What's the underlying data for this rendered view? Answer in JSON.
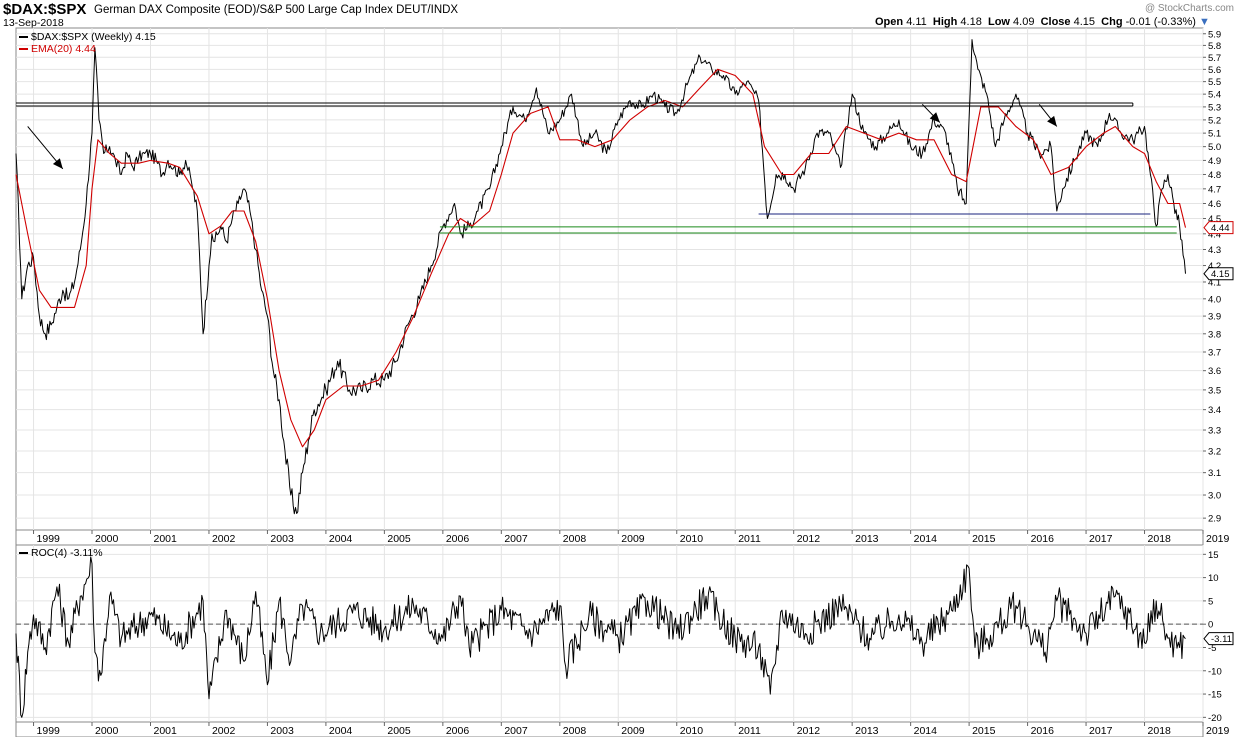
{
  "header": {
    "symbol": "$DAX:$SPX",
    "description": "German DAX Composite (EOD)/S&P 500 Large Cap Index DEUT/INDX",
    "date": "13-Sep-2018",
    "watermark": "@ StockCharts.com",
    "open_label": "Open",
    "open": "4.11",
    "high_label": "High",
    "high": "4.18",
    "low_label": "Low",
    "low": "4.09",
    "close_label": "Close",
    "close": "4.15",
    "chg_label": "Chg",
    "chg": "-0.01 (-0.33%)"
  },
  "colors": {
    "price": "#000000",
    "ema": "#d00000",
    "resistance": "#000000",
    "support_blue": "#1a237e",
    "support_green": "#1b8a1b",
    "zero_line": "#555555"
  },
  "chart_data": [
    {
      "type": "line",
      "name": "price-panel",
      "legend": [
        {
          "label": "$DAX:$SPX (Weekly) 4.15",
          "color": "#000000"
        },
        {
          "label": "EMA(20) 4.44",
          "color": "#d00000"
        }
      ],
      "xlim": [
        1998.7,
        2019.0
      ],
      "ylim": [
        2.85,
        5.95
      ],
      "y_scale": "log",
      "x_ticks": [
        "1999",
        "2000",
        "2001",
        "2002",
        "2003",
        "2004",
        "2005",
        "2006",
        "2007",
        "2008",
        "2009",
        "2010",
        "2011",
        "2012",
        "2013",
        "2014",
        "2015",
        "2016",
        "2017",
        "2018",
        "2019"
      ],
      "y_ticks": [
        "2.9",
        "3.0",
        "3.1",
        "3.2",
        "3.3",
        "3.4",
        "3.5",
        "3.6",
        "3.7",
        "3.8",
        "3.9",
        "4.0",
        "4.1",
        "4.2",
        "4.3",
        "4.4",
        "4.5",
        "4.6",
        "4.7",
        "4.8",
        "4.9",
        "5.0",
        "5.1",
        "5.2",
        "5.3",
        "5.4",
        "5.5",
        "5.6",
        "5.7",
        "5.8",
        "5.9"
      ],
      "series": [
        {
          "name": "$DAX:$SPX",
          "x": [
            1998.7,
            1998.8,
            1998.9,
            1999.0,
            1999.1,
            1999.2,
            1999.3,
            1999.4,
            1999.5,
            1999.6,
            1999.7,
            1999.8,
            1999.9,
            2000.0,
            2000.05,
            2000.12,
            2000.2,
            2000.3,
            2000.4,
            2000.5,
            2000.6,
            2000.7,
            2000.8,
            2000.9,
            2001.0,
            2001.1,
            2001.2,
            2001.3,
            2001.4,
            2001.5,
            2001.6,
            2001.7,
            2001.8,
            2001.9,
            2002.0,
            2002.05,
            2002.1,
            2002.2,
            2002.3,
            2002.4,
            2002.5,
            2002.6,
            2002.7,
            2002.8,
            2002.9,
            2003.0,
            2003.1,
            2003.2,
            2003.3,
            2003.4,
            2003.5,
            2003.6,
            2003.7,
            2003.8,
            2004.0,
            2004.2,
            2004.4,
            2004.6,
            2004.8,
            2005.0,
            2005.2,
            2005.4,
            2005.6,
            2005.8,
            2006.0,
            2006.2,
            2006.3,
            2006.45,
            2006.6,
            2006.8,
            2007.0,
            2007.2,
            2007.4,
            2007.6,
            2007.8,
            2008.0,
            2008.2,
            2008.4,
            2008.6,
            2008.8,
            2009.0,
            2009.2,
            2009.4,
            2009.6,
            2009.8,
            2010.0,
            2010.2,
            2010.4,
            2010.6,
            2010.8,
            2011.0,
            2011.2,
            2011.4,
            2011.55,
            2011.7,
            2011.85,
            2012.0,
            2012.2,
            2012.4,
            2012.6,
            2012.8,
            2013.0,
            2013.2,
            2013.4,
            2013.6,
            2013.8,
            2014.0,
            2014.2,
            2014.4,
            2014.6,
            2014.8,
            2014.95,
            2015.05,
            2015.15,
            2015.3,
            2015.45,
            2015.6,
            2015.8,
            2016.0,
            2016.2,
            2016.4,
            2016.5,
            2016.6,
            2016.8,
            2017.0,
            2017.2,
            2017.4,
            2017.6,
            2017.8,
            2018.0,
            2018.1,
            2018.2,
            2018.3,
            2018.4,
            2018.5,
            2018.6,
            2018.7
          ],
          "values": [
            4.95,
            4.0,
            4.2,
            4.25,
            3.9,
            3.8,
            3.85,
            3.95,
            4.05,
            4.0,
            4.1,
            4.3,
            4.6,
            5.1,
            5.78,
            5.2,
            4.95,
            5.0,
            4.9,
            4.8,
            4.95,
            4.85,
            4.92,
            4.95,
            4.95,
            4.9,
            4.8,
            4.9,
            4.85,
            4.8,
            4.9,
            4.75,
            4.55,
            3.8,
            4.2,
            4.4,
            4.35,
            4.45,
            4.35,
            4.5,
            4.6,
            4.7,
            4.55,
            4.3,
            4.05,
            3.9,
            3.6,
            3.45,
            3.2,
            3.0,
            2.92,
            3.1,
            3.25,
            3.4,
            3.5,
            3.65,
            3.5,
            3.5,
            3.55,
            3.55,
            3.65,
            3.85,
            4.0,
            4.2,
            4.45,
            4.6,
            4.4,
            4.45,
            4.55,
            4.7,
            5.0,
            5.3,
            5.2,
            5.45,
            5.1,
            5.2,
            5.4,
            5.0,
            5.1,
            4.95,
            5.2,
            5.35,
            5.3,
            5.4,
            5.3,
            5.25,
            5.5,
            5.7,
            5.6,
            5.55,
            5.4,
            5.5,
            5.35,
            4.5,
            4.8,
            4.8,
            4.7,
            4.85,
            5.1,
            5.1,
            4.85,
            5.4,
            5.1,
            5.0,
            5.1,
            5.2,
            5.0,
            4.95,
            5.2,
            5.1,
            4.7,
            4.6,
            5.85,
            5.6,
            5.4,
            5.0,
            5.2,
            5.4,
            5.1,
            4.95,
            5.0,
            4.55,
            4.7,
            4.9,
            5.1,
            5.0,
            5.25,
            5.1,
            5.05,
            5.15,
            4.8,
            4.45,
            4.7,
            4.8,
            4.6,
            4.45,
            4.15
          ]
        },
        {
          "name": "EMA(20)",
          "x": [
            1998.7,
            1998.9,
            1999.1,
            1999.3,
            1999.5,
            1999.7,
            1999.9,
            2000.0,
            2000.1,
            2000.3,
            2000.5,
            2000.8,
            2001.0,
            2001.3,
            2001.5,
            2001.8,
            2002.0,
            2002.2,
            2002.4,
            2002.6,
            2002.8,
            2003.0,
            2003.2,
            2003.4,
            2003.6,
            2003.8,
            2004.0,
            2004.3,
            2004.6,
            2004.9,
            2005.2,
            2005.5,
            2005.8,
            2006.1,
            2006.3,
            2006.5,
            2006.8,
            2007.0,
            2007.2,
            2007.5,
            2007.8,
            2008.0,
            2008.3,
            2008.6,
            2008.9,
            2009.2,
            2009.5,
            2009.8,
            2010.1,
            2010.4,
            2010.7,
            2011.0,
            2011.3,
            2011.5,
            2011.8,
            2012.0,
            2012.3,
            2012.6,
            2012.9,
            2013.2,
            2013.5,
            2013.8,
            2014.1,
            2014.4,
            2014.7,
            2014.95,
            2015.2,
            2015.5,
            2015.8,
            2016.1,
            2016.4,
            2016.7,
            2017.0,
            2017.3,
            2017.5,
            2017.8,
            2018.0,
            2018.2,
            2018.4,
            2018.6,
            2018.7
          ],
          "values": [
            4.8,
            4.4,
            4.05,
            3.95,
            3.95,
            3.95,
            4.2,
            4.7,
            5.05,
            4.95,
            4.88,
            4.88,
            4.9,
            4.88,
            4.85,
            4.65,
            4.4,
            4.45,
            4.55,
            4.55,
            4.35,
            4.0,
            3.6,
            3.35,
            3.22,
            3.3,
            3.45,
            3.52,
            3.52,
            3.55,
            3.7,
            3.9,
            4.15,
            4.4,
            4.5,
            4.45,
            4.55,
            4.8,
            5.1,
            5.25,
            5.3,
            5.05,
            5.05,
            5.0,
            5.05,
            5.2,
            5.3,
            5.35,
            5.3,
            5.45,
            5.6,
            5.55,
            5.4,
            5.0,
            4.8,
            4.8,
            4.95,
            4.95,
            5.15,
            5.1,
            5.05,
            5.1,
            5.05,
            5.05,
            4.8,
            4.75,
            5.3,
            5.3,
            5.15,
            5.05,
            4.8,
            4.85,
            5.0,
            5.1,
            5.15,
            5.0,
            4.95,
            4.75,
            4.6,
            4.6,
            4.44
          ]
        }
      ],
      "annotations": [
        {
          "type": "hline",
          "name": "resistance-line",
          "y": 5.33,
          "x0": 1998.7,
          "x1": 2017.8,
          "color": "#000000"
        },
        {
          "type": "hline",
          "name": "support-line-blue",
          "y": 4.53,
          "x0": 2011.4,
          "x1": 2018.1,
          "color": "#1a237e"
        },
        {
          "type": "hline",
          "name": "support-line-green-upper",
          "y": 4.445,
          "x0": 2005.95,
          "x1": 2018.55,
          "color": "#1b8a1b"
        },
        {
          "type": "hline",
          "name": "support-line-green-lower",
          "y": 4.405,
          "x0": 2005.95,
          "x1": 2018.55,
          "color": "#1b8a1b"
        },
        {
          "type": "arrow",
          "name": "arrow-1999",
          "from": [
            1998.9,
            5.15
          ],
          "to": [
            1999.5,
            4.84
          ]
        },
        {
          "type": "arrow",
          "name": "arrow-2014",
          "from": [
            2014.2,
            5.32
          ],
          "to": [
            2014.5,
            5.18
          ]
        },
        {
          "type": "arrow",
          "name": "arrow-2016",
          "from": [
            2016.2,
            5.32
          ],
          "to": [
            2016.5,
            5.15
          ]
        }
      ],
      "value_tags": [
        {
          "label": "4.44",
          "value": 4.44,
          "color": "#d00000"
        },
        {
          "label": "4.15",
          "value": 4.15,
          "color": "#000000"
        }
      ]
    },
    {
      "type": "line",
      "name": "roc-panel",
      "legend": [
        {
          "label": "ROC(4) -3.11%",
          "color": "#000000"
        }
      ],
      "xlim": [
        1998.7,
        2019.0
      ],
      "ylim": [
        -21,
        17
      ],
      "x_ticks": [
        "1999",
        "2000",
        "2001",
        "2002",
        "2003",
        "2004",
        "2005",
        "2006",
        "2007",
        "2008",
        "2009",
        "2010",
        "2011",
        "2012",
        "2013",
        "2014",
        "2015",
        "2016",
        "2017",
        "2018",
        "2019"
      ],
      "y_ticks": [
        "-20",
        "-15",
        "-10",
        "-5",
        "0",
        "5",
        "10",
        "15"
      ],
      "zero_line": 0,
      "series": [
        {
          "name": "ROC(4)",
          "x": [
            1998.7,
            1998.8,
            1998.9,
            1999.0,
            1999.2,
            1999.4,
            1999.6,
            1999.8,
            2000.0,
            2000.05,
            2000.15,
            2000.3,
            2000.5,
            2001.0,
            2001.5,
            2001.9,
            2002.0,
            2002.3,
            2002.6,
            2002.8,
            2003.0,
            2003.2,
            2003.4,
            2003.6,
            2003.9,
            2004.5,
            2005.0,
            2005.5,
            2006.0,
            2006.3,
            2006.45,
            2007.0,
            2007.5,
            2008.0,
            2008.1,
            2008.5,
            2009.0,
            2009.5,
            2010.0,
            2010.5,
            2011.0,
            2011.4,
            2011.6,
            2011.8,
            2012.2,
            2012.8,
            2013.3,
            2013.8,
            2014.2,
            2014.7,
            2015.0,
            2015.1,
            2015.3,
            2015.8,
            2016.3,
            2016.5,
            2017.0,
            2017.5,
            2018.0,
            2018.2,
            2018.4,
            2018.6,
            2018.7
          ],
          "values": [
            -2,
            -20,
            -6,
            2,
            -5,
            8,
            -4,
            6,
            13,
            -6,
            -11,
            6,
            -3,
            2,
            -4,
            5,
            -16,
            3,
            -8,
            7,
            -13,
            5,
            -8,
            4,
            -2,
            3,
            -1,
            4,
            -3,
            6,
            -5,
            3,
            -2,
            4,
            -9,
            2,
            -3,
            5,
            -2,
            6,
            -3,
            -5,
            -15,
            3,
            -2,
            4,
            -3,
            2,
            -4,
            3,
            12,
            -5,
            -3,
            4,
            -6,
            5,
            -2,
            6,
            -4,
            5,
            -3,
            -5,
            -3.11
          ]
        }
      ],
      "value_tags": [
        {
          "label": "-3.11",
          "value": -3.11,
          "color": "#000000"
        }
      ]
    }
  ]
}
